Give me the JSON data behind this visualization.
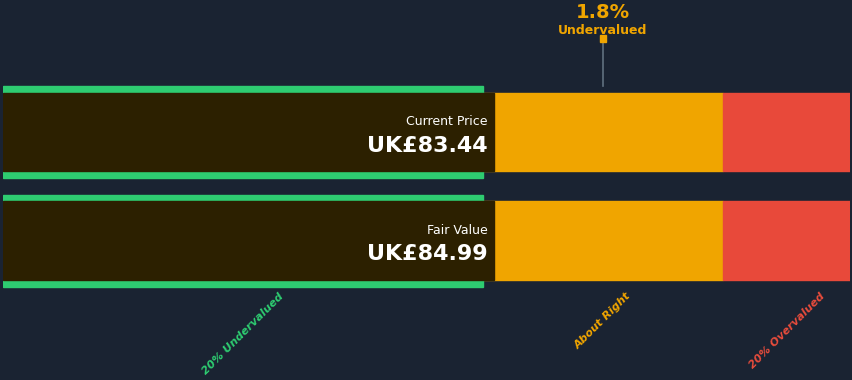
{
  "background_color": "#1a2332",
  "current_price": 83.44,
  "fair_value": 84.99,
  "price_min": 0,
  "price_max": 120,
  "undervalued_threshold": 67.992,
  "overvalued_threshold": 101.988,
  "undervalued_pct": "1.8%",
  "undervalued_label": "Undervalued",
  "segment_labels": [
    "20% Undervalued",
    "About Right",
    "20% Overvalued"
  ],
  "segment_label_colors": [
    "#2ecc71",
    "#f0a500",
    "#e74c3c"
  ],
  "green_color": "#2ecc71",
  "dark_green_color": "#1f5c40",
  "orange_color": "#f0a500",
  "red_color": "#e8493a",
  "dark_box_color": "#2c2000",
  "current_price_label": "Current Price",
  "current_price_display": "UK£83.44",
  "fair_value_label": "Fair Value",
  "fair_value_display": "UK£84.99",
  "annotation_color": "#f0a500",
  "annotation_line_color": "#607080",
  "stripe_color": "#2ecc71"
}
